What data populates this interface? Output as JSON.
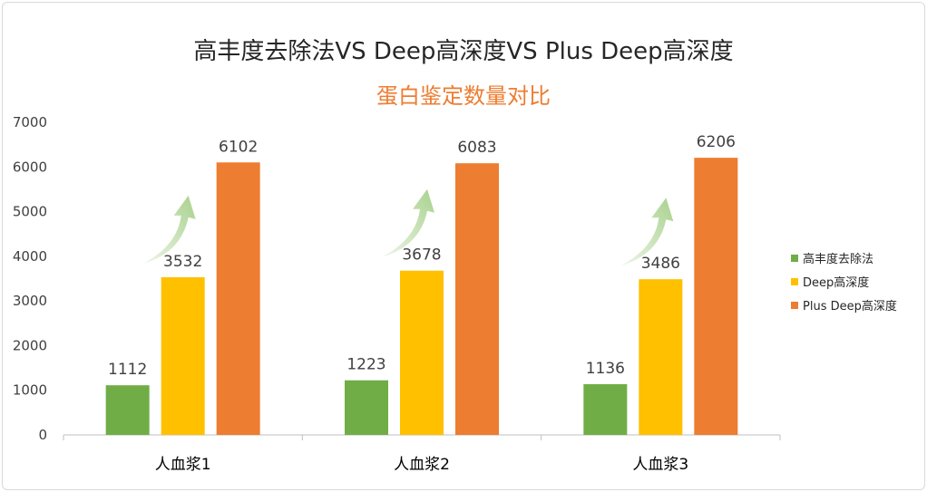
{
  "chart_data": {
    "type": "bar",
    "title": "高丰度去除法VS Deep高深度VS Plus Deep高深度",
    "subtitle": "蛋白鉴定数量对比",
    "categories": [
      "人血浆1",
      "人血浆2",
      "人血浆3"
    ],
    "series": [
      {
        "name": "高丰度去除法",
        "color": "#70ad47",
        "values": [
          1112,
          1223,
          1136
        ]
      },
      {
        "name": "Deep高深度",
        "color": "#ffc000",
        "values": [
          3532,
          3678,
          3486
        ]
      },
      {
        "name": "Plus Deep高深度",
        "color": "#ed7d31",
        "values": [
          6102,
          6083,
          6206
        ]
      }
    ],
    "ylim": [
      0,
      7000
    ],
    "yticks": [
      0,
      1000,
      2000,
      3000,
      4000,
      5000,
      6000,
      7000
    ],
    "legend_position": "right",
    "grid": false,
    "annotation_arrow_color": "#a9d18e"
  }
}
